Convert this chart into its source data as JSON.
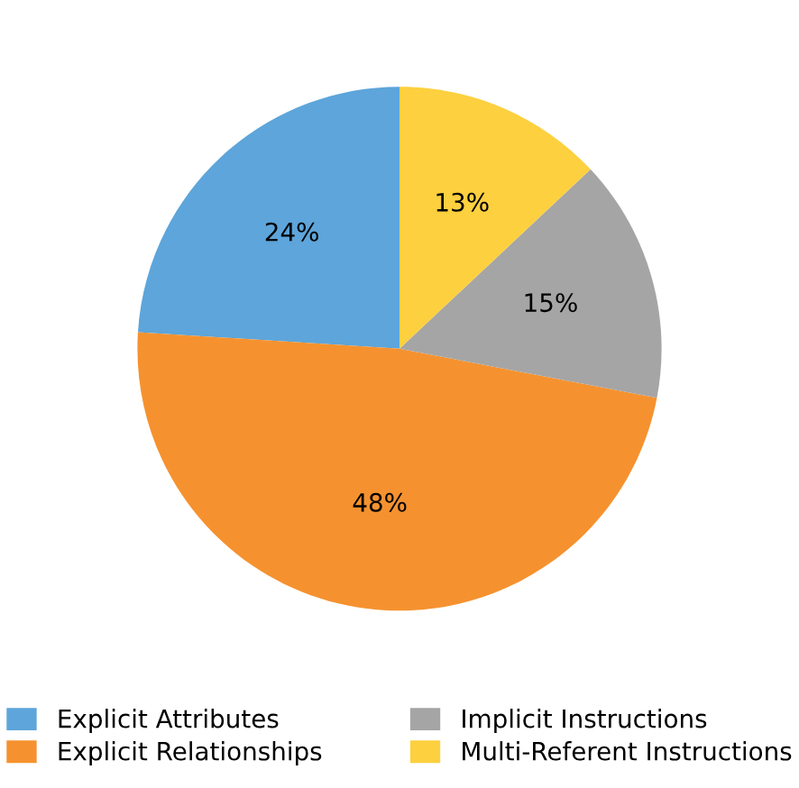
{
  "chart_data": {
    "type": "pie",
    "categories": [
      "Explicit Attributes",
      "Explicit Relationships",
      "Implicit Instructions",
      "Multi-Referent Instructions"
    ],
    "values": [
      24,
      48,
      15,
      13
    ],
    "colors": [
      "#5da5da",
      "#f5922f",
      "#a5a5a5",
      "#fdd03f"
    ],
    "value_labels": [
      "24%",
      "48%",
      "15%",
      "13%"
    ],
    "legend": "bottom"
  }
}
